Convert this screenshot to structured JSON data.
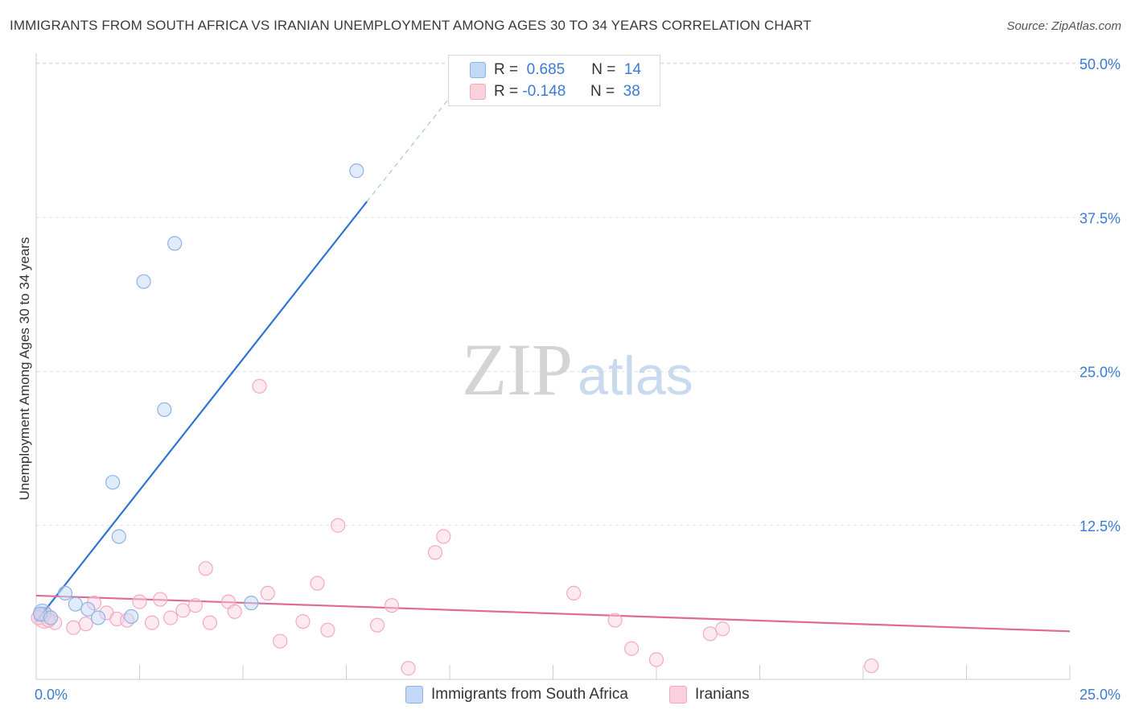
{
  "title": "IMMIGRANTS FROM SOUTH AFRICA VS IRANIAN UNEMPLOYMENT AMONG AGES 30 TO 34 YEARS CORRELATION CHART",
  "source": "Source: ZipAtlas.com",
  "watermark": {
    "zip": "ZIP",
    "atlas": "atlas"
  },
  "legend": {
    "r_label": "R =",
    "n_label": "N =",
    "series": [
      {
        "name": "Immigrants from South Africa",
        "r": "0.685",
        "n": "14"
      },
      {
        "name": "Iranians",
        "r": "-0.148",
        "n": "38"
      }
    ]
  },
  "chart_data": {
    "type": "scatter",
    "title": "IMMIGRANTS FROM SOUTH AFRICA VS IRANIAN UNEMPLOYMENT AMONG AGES 30 TO 34 YEARS CORRELATION CHART",
    "xlabel": "",
    "ylabel": "Unemployment Among Ages 30 to 34 years",
    "xlim": [
      0,
      25
    ],
    "ylim": [
      0,
      50
    ],
    "x_tick_labels": [
      "0.0%",
      "25.0%"
    ],
    "y_ticks": [
      12.5,
      25,
      37.5,
      50
    ],
    "y_tick_labels": [
      "12.5%",
      "25.0%",
      "37.5%",
      "50.0%"
    ],
    "grid": true,
    "legend_position": "top-center",
    "series": [
      {
        "name": "Immigrants from South Africa",
        "color": "#8ab4e8",
        "line_color": "#2f74d0",
        "points": [
          [
            0.1,
            5.3
          ],
          [
            0.35,
            5.0
          ],
          [
            0.7,
            7.0
          ],
          [
            0.95,
            6.1
          ],
          [
            1.25,
            5.7
          ],
          [
            1.5,
            5.0
          ],
          [
            1.85,
            16.0
          ],
          [
            2.0,
            11.6
          ],
          [
            2.3,
            5.1
          ],
          [
            2.6,
            32.3
          ],
          [
            3.1,
            21.9
          ],
          [
            3.35,
            35.4
          ],
          [
            5.2,
            6.2
          ],
          [
            7.75,
            41.3
          ]
        ],
        "trend": {
          "x_solid": [
            0,
            8.0
          ],
          "y_solid": [
            4.7,
            38.8
          ],
          "x_dashed": [
            8.0,
            10.3
          ],
          "y_dashed": [
            38.8,
            48.5
          ]
        }
      },
      {
        "name": "Iranians",
        "color": "#f4a9c0",
        "line_color": "#e06a93",
        "points": [
          [
            0.05,
            5.0
          ],
          [
            0.45,
            4.6
          ],
          [
            0.9,
            4.2
          ],
          [
            1.2,
            4.5
          ],
          [
            1.4,
            6.2
          ],
          [
            1.7,
            5.4
          ],
          [
            1.95,
            4.9
          ],
          [
            2.2,
            4.8
          ],
          [
            2.5,
            6.3
          ],
          [
            2.8,
            4.6
          ],
          [
            3.0,
            6.5
          ],
          [
            3.25,
            5.0
          ],
          [
            3.55,
            5.6
          ],
          [
            3.85,
            6.0
          ],
          [
            4.1,
            9.0
          ],
          [
            4.2,
            4.6
          ],
          [
            4.65,
            6.3
          ],
          [
            4.8,
            5.5
          ],
          [
            5.6,
            7.0
          ],
          [
            5.9,
            3.1
          ],
          [
            6.45,
            4.7
          ],
          [
            6.8,
            7.8
          ],
          [
            7.05,
            4.0
          ],
          [
            7.3,
            12.5
          ],
          [
            8.25,
            4.4
          ],
          [
            8.6,
            6.0
          ],
          [
            9.0,
            0.9
          ],
          [
            9.65,
            10.3
          ],
          [
            9.85,
            11.6
          ],
          [
            5.4,
            23.8
          ],
          [
            13.0,
            7.0
          ],
          [
            14.0,
            4.8
          ],
          [
            14.4,
            2.5
          ],
          [
            15.0,
            1.6
          ],
          [
            16.3,
            3.7
          ],
          [
            16.6,
            4.1
          ],
          [
            20.2,
            1.1
          ],
          [
            0.3,
            4.8
          ]
        ],
        "trend": {
          "x": [
            0,
            25
          ],
          "y": [
            6.8,
            3.9
          ]
        }
      }
    ]
  }
}
